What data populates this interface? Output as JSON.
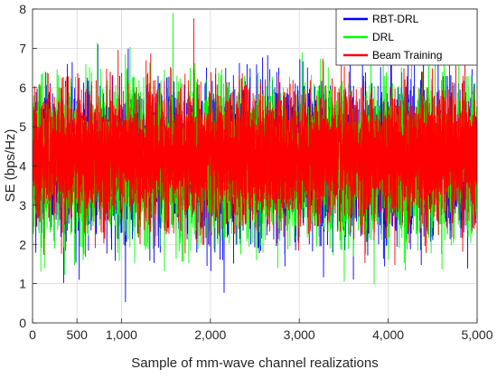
{
  "chart_data": {
    "type": "line",
    "title": "",
    "xlabel": "Sample of mm-wave channel realizations",
    "ylabel": "SE (bps/Hz)",
    "xlim": [
      0,
      5000
    ],
    "ylim": [
      0,
      8
    ],
    "x_ticks": [
      0,
      500,
      1000,
      2000,
      3000,
      4000,
      5000
    ],
    "x_tick_labels": [
      "0",
      "500",
      "1,000",
      "2,000",
      "3,000",
      "4,000",
      "5,000"
    ],
    "y_ticks": [
      0,
      1,
      2,
      3,
      4,
      5,
      6,
      7,
      8
    ],
    "y_tick_labels": [
      "0",
      "1",
      "2",
      "3",
      "4",
      "5",
      "6",
      "7",
      "8"
    ],
    "grid": true,
    "legend_position": "top-right",
    "samples": 5000,
    "series": [
      {
        "name": "RBT-DRL",
        "color": "#0000ff",
        "mean": 4.15,
        "sd": 0.9,
        "min": 0.45,
        "max": 7.6
      },
      {
        "name": "DRL",
        "color": "#00ff00",
        "mean": 4.1,
        "sd": 0.92,
        "min": 0.55,
        "max": 7.9
      },
      {
        "name": "Beam Training",
        "color": "#ff0000",
        "mean": 4.25,
        "sd": 0.82,
        "min": 0.85,
        "max": 7.8
      }
    ]
  }
}
